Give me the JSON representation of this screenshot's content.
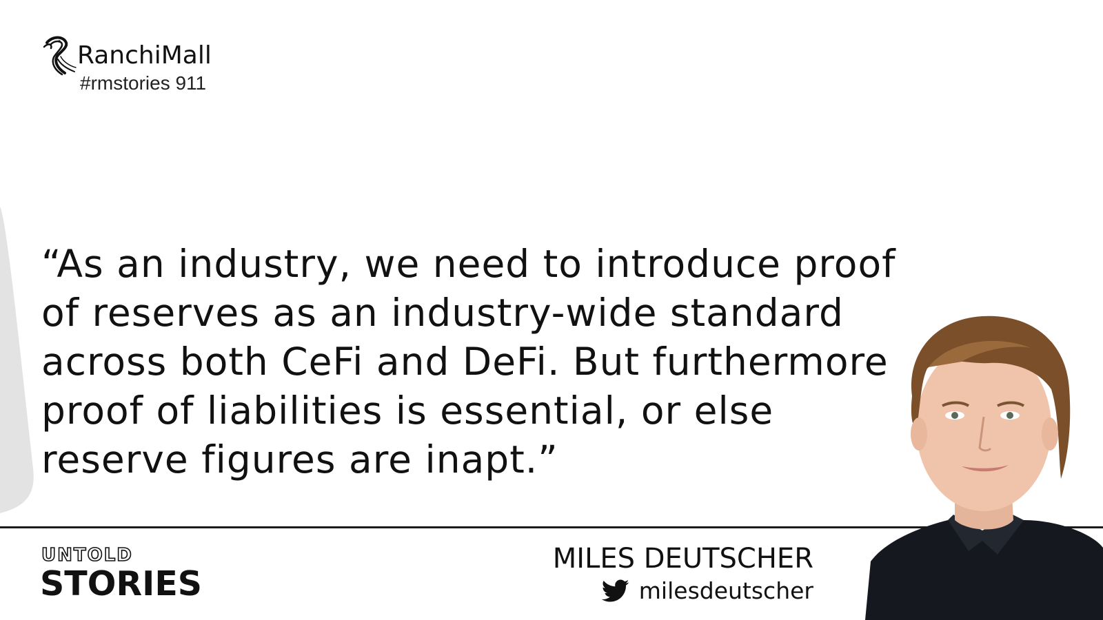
{
  "brand": {
    "name": "RanchiMall",
    "tag": "#rmstories 911",
    "logo_icon": "seahorse-logo-icon"
  },
  "quote": {
    "text": "“As an industry, we need to introduce proof of reserves as an industry-wide standard across both CeFi and DeFi. But furthermore proof of liabilities is essential, or else reserve figures are inapt.”"
  },
  "series": {
    "line1": "UNTOLD",
    "line2": "STORIES"
  },
  "speaker": {
    "name": "MILES DEUTSCHER",
    "handle": "milesdeutscher",
    "handle_icon": "twitter-icon",
    "photo": "portrait-photo"
  },
  "colors": {
    "background": "#ffffff",
    "text": "#111111",
    "decor": "#e3e3e3"
  }
}
